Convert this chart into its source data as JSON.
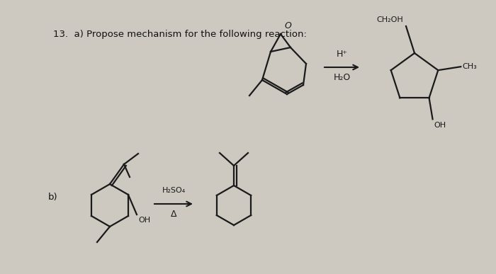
{
  "paper_color": "#cdc8c0",
  "struct_color": "#1a1a1a",
  "title_text": "13.  a) Propose mechanism for the following reaction:",
  "title_fontsize": 9.5,
  "label_b": "b)",
  "reagent_a_top": "H⁺",
  "reagent_a_bot": "H₂O",
  "reagent_b_top": "H₂SO₄",
  "reagent_b_bot": "Δ",
  "ch2oh": "CH₂OH",
  "ch3": "CH₃",
  "oh": "OH",
  "O": "O"
}
